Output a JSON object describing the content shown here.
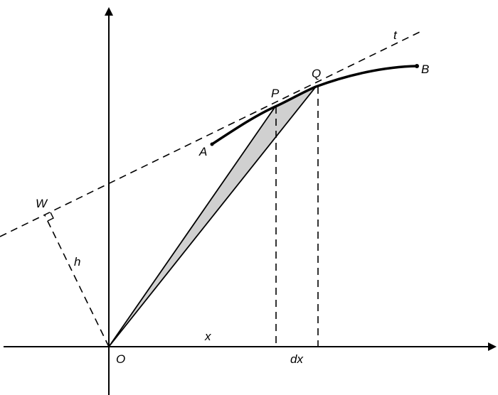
{
  "diagram": {
    "labels": {
      "t": "t",
      "A": "A",
      "B": "B",
      "P": "P",
      "Q": "Q",
      "W": "W",
      "h": "h",
      "O": "O",
      "x": "x",
      "dx": "dx"
    },
    "colors": {
      "stroke": "#000000",
      "shaded_region": "#d0d0d0"
    }
  }
}
